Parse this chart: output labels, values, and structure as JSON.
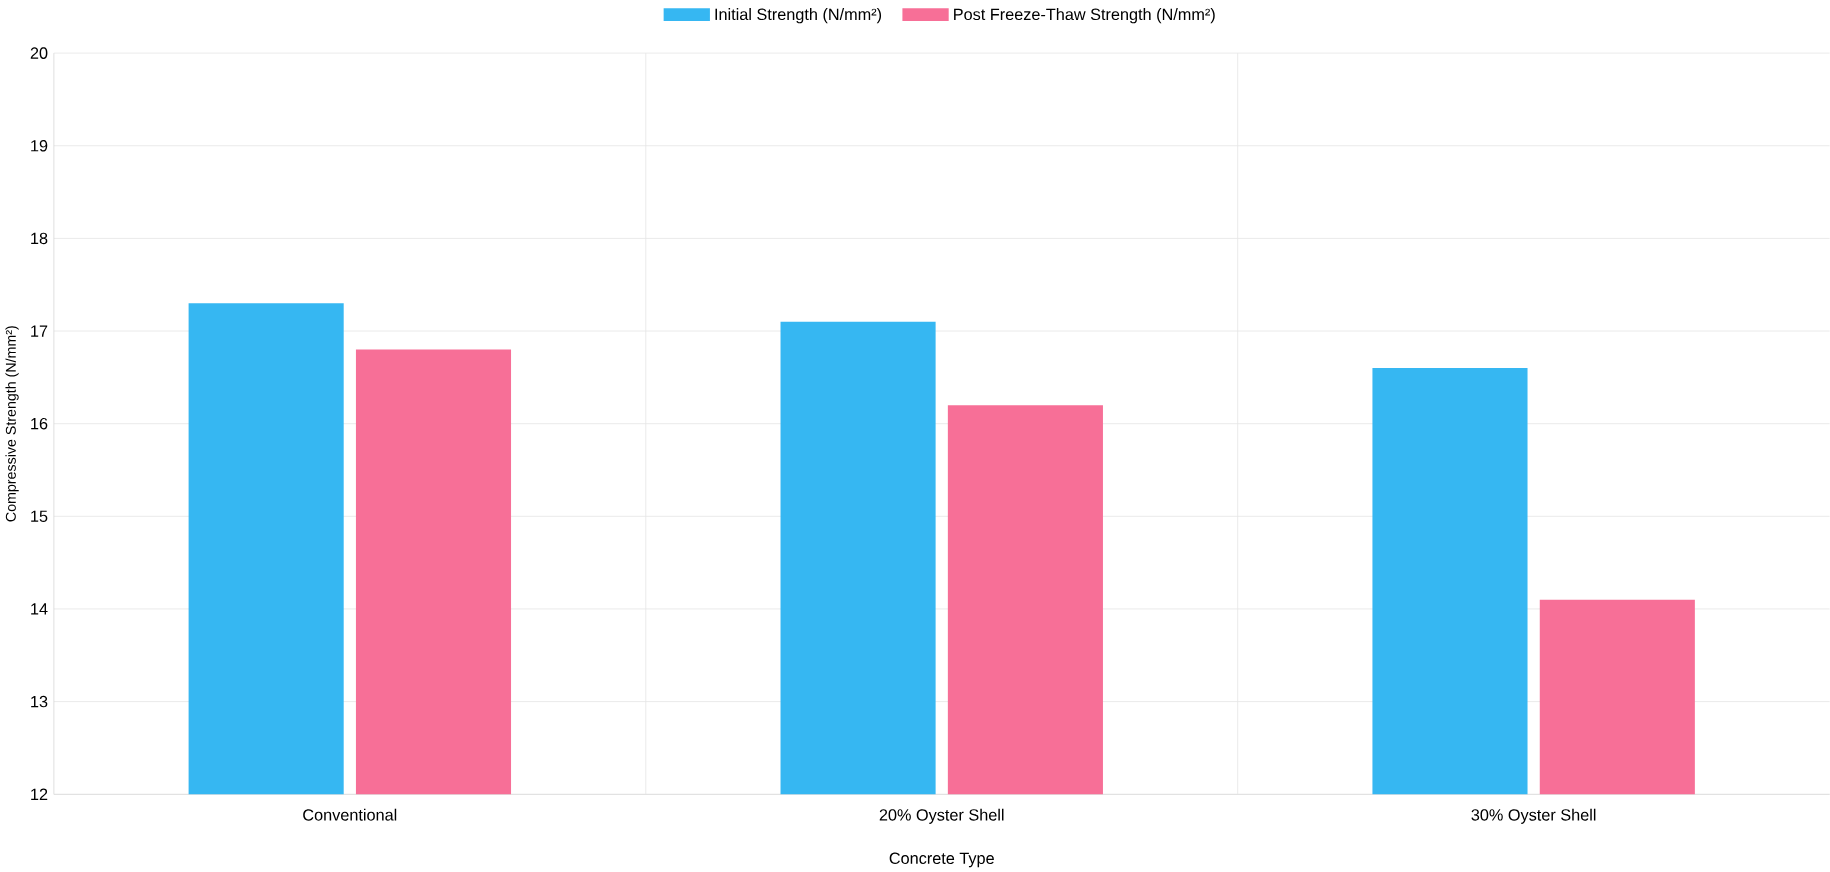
{
  "chart_data": {
    "type": "bar",
    "xlabel": "Concrete Type",
    "ylabel": "Compressive Strength (N/mm²)",
    "categories": [
      "Conventional",
      "20% Oyster Shell",
      "30% Oyster Shell"
    ],
    "series": [
      {
        "name": "Initial Strength (N/mm²)",
        "color": "#36b7f2",
        "values": [
          17.3,
          17.1,
          16.6
        ]
      },
      {
        "name": "Post Freeze-Thaw Strength (N/mm²)",
        "color": "#f76f97",
        "values": [
          16.8,
          16.2,
          14.1
        ]
      }
    ],
    "ylim": [
      12,
      20
    ],
    "yticks": [
      12,
      13,
      14,
      15,
      16,
      17,
      18,
      19,
      20
    ],
    "grid": true,
    "legend": "top"
  }
}
